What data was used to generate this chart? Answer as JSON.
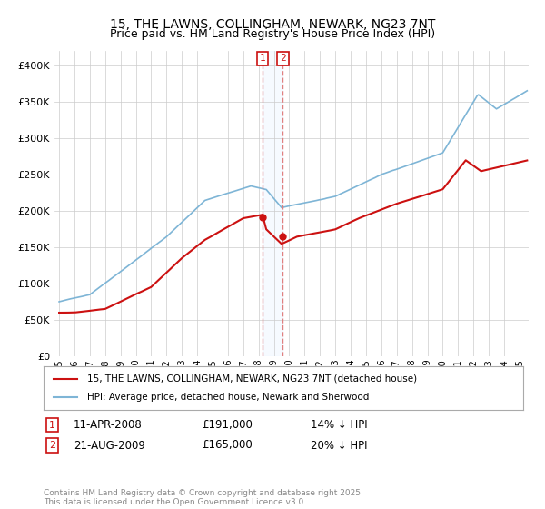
{
  "title": "15, THE LAWNS, COLLINGHAM, NEWARK, NG23 7NT",
  "subtitle": "Price paid vs. HM Land Registry's House Price Index (HPI)",
  "ylim": [
    0,
    420000
  ],
  "yticks": [
    0,
    50000,
    100000,
    150000,
    200000,
    250000,
    300000,
    350000,
    400000
  ],
  "ytick_labels": [
    "£0",
    "£50K",
    "£100K",
    "£150K",
    "£200K",
    "£250K",
    "£300K",
    "£350K",
    "£400K"
  ],
  "hpi_color": "#7eb5d6",
  "price_color": "#cc1111",
  "marker1_year": 2008.25,
  "marker2_year": 2009.625,
  "marker1_price": 191000,
  "marker2_price": 165000,
  "legend_entry1": "15, THE LAWNS, COLLINGHAM, NEWARK, NG23 7NT (detached house)",
  "legend_entry2": "HPI: Average price, detached house, Newark and Sherwood",
  "footer": "Contains HM Land Registry data © Crown copyright and database right 2025.\nThis data is licensed under the Open Government Licence v3.0.",
  "grid_color": "#cccccc",
  "vline_color": "#e08080",
  "vfill_color": "#ddeeff",
  "xlim_start": 1994.7,
  "xlim_end": 2025.6
}
